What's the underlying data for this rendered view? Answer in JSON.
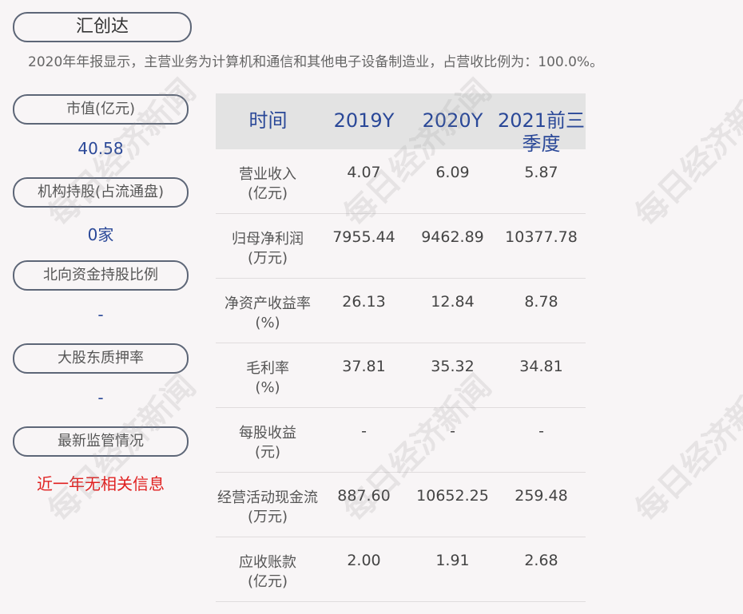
{
  "company": "汇创达",
  "description": "2020年年报显示，主营业务为计算机和通信和其他电子设备制造业，占营收比例为：100.0%。",
  "left_panel": [
    {
      "label": "市值(亿元)",
      "value": "40.58"
    },
    {
      "label": "机构持股(占流通盘)",
      "value": "0家"
    },
    {
      "label": "北向资金持股比例",
      "value": "-"
    },
    {
      "label": "大股东质押率",
      "value": "-"
    },
    {
      "label": "最新监管情况",
      "value": "近一年无相关信息"
    }
  ],
  "table": {
    "headers": [
      "时间",
      "2019Y",
      "2020Y",
      "2021前三季度"
    ],
    "rows": [
      {
        "label": "营业收入\n(亿元)",
        "values": [
          "4.07",
          "6.09",
          "5.87"
        ]
      },
      {
        "label": "归母净利润\n(万元)",
        "values": [
          "7955.44",
          "9462.89",
          "10377.78"
        ]
      },
      {
        "label": "净资产收益率\n(%)",
        "values": [
          "26.13",
          "12.84",
          "8.78"
        ]
      },
      {
        "label": "毛利率\n(%)",
        "values": [
          "37.81",
          "35.32",
          "34.81"
        ]
      },
      {
        "label": "每股收益\n(元)",
        "values": [
          "-",
          "-",
          "-"
        ]
      },
      {
        "label": "经营活动现金流\n(万元)",
        "values": [
          "887.60",
          "10652.25",
          "259.48"
        ]
      },
      {
        "label": "应收账款\n(亿元)",
        "values": [
          "2.00",
          "1.91",
          "2.68"
        ]
      }
    ]
  },
  "watermark": "每日经济新闻",
  "colors": {
    "accent": "#2a4898",
    "alert": "#e02020"
  }
}
